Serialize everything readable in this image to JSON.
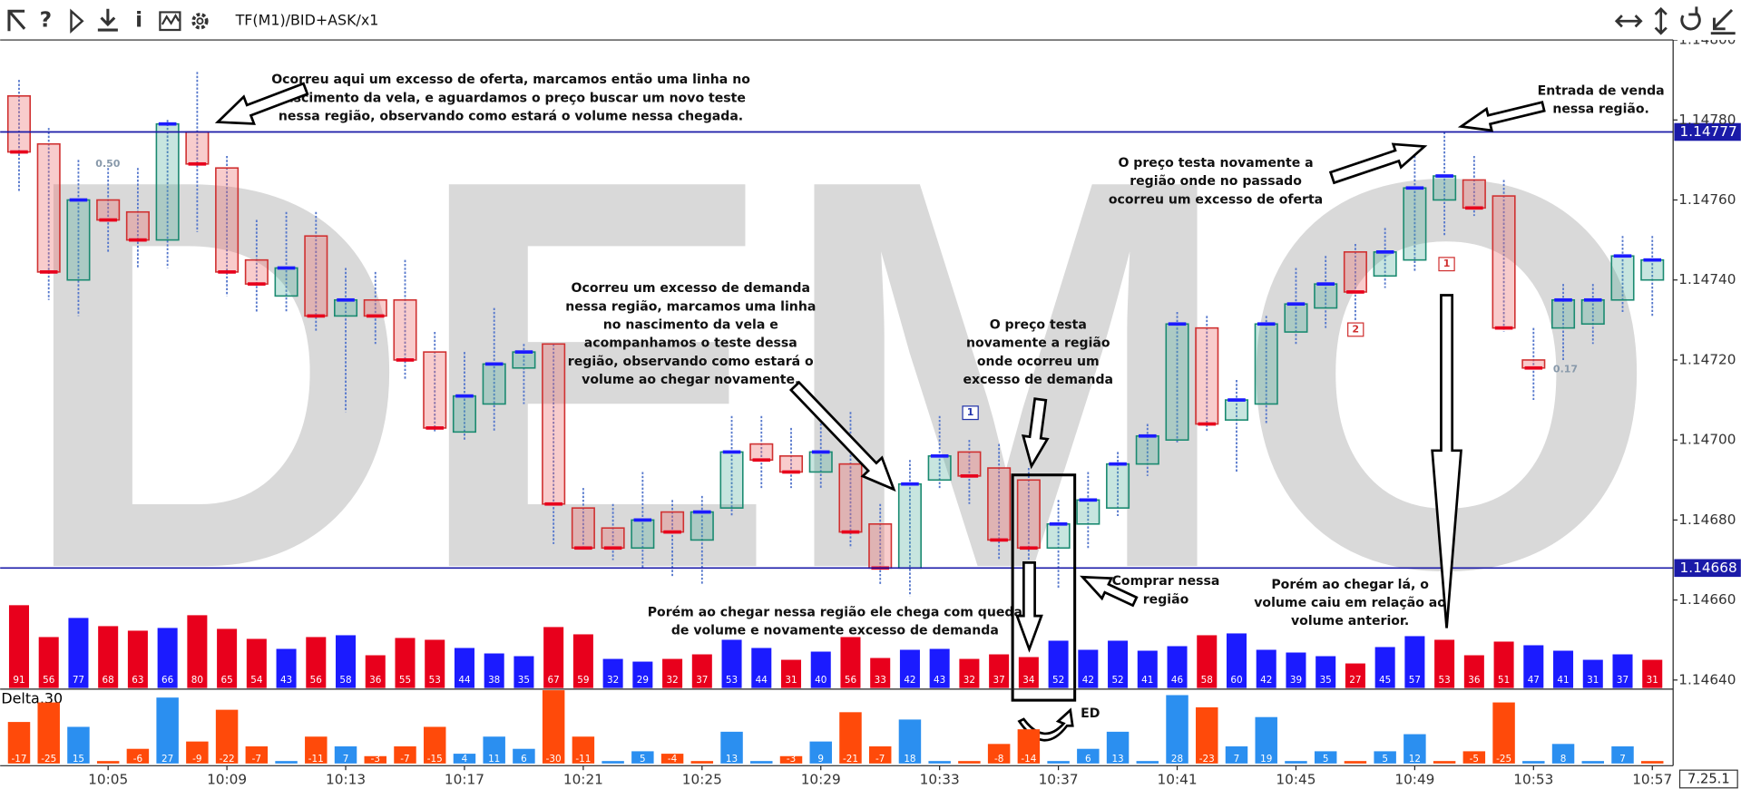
{
  "chart_data": {
    "type": "candlestick",
    "toolbar": {
      "help": "?",
      "info": "i",
      "label": "TF(M1)/BID+ASK/x1"
    },
    "watermark": "DEMO",
    "version": "7.25.1",
    "delta_title": "Delta,30",
    "categories": [
      null,
      null,
      null,
      "10:05",
      null,
      null,
      null,
      "10:09",
      null,
      null,
      null,
      "10:13",
      null,
      null,
      null,
      "10:17",
      null,
      null,
      null,
      "10:21",
      null,
      null,
      null,
      "10:25",
      null,
      null,
      null,
      "10:29",
      null,
      null,
      null,
      "10:33",
      null,
      null,
      null,
      "10:37",
      null,
      null,
      null,
      "10:41",
      null,
      null,
      null,
      "10:45",
      null,
      null,
      null,
      "10:49",
      null,
      null,
      null,
      "10:53",
      null,
      null,
      null,
      "10:57"
    ],
    "open": [
      1.14786,
      1.14774,
      1.1474,
      1.1476,
      1.14757,
      1.1475,
      1.14777,
      1.14768,
      1.14745,
      1.14736,
      1.14751,
      1.14731,
      1.14735,
      1.14735,
      1.14722,
      1.14702,
      1.14709,
      1.14718,
      1.14724,
      1.14683,
      1.14678,
      1.14673,
      1.14682,
      1.14675,
      1.14683,
      1.14699,
      1.14696,
      1.14692,
      1.14694,
      1.14679,
      1.14668,
      1.1469,
      1.14697,
      1.14693,
      1.1469,
      1.14673,
      1.14679,
      1.14683,
      1.14694,
      1.147,
      1.14728,
      1.14705,
      1.14709,
      1.14727,
      1.14733,
      1.14747,
      1.14741,
      1.14745,
      1.1476,
      1.14765,
      1.14761,
      1.1472,
      1.14728,
      1.14729,
      1.14735,
      1.1474
    ],
    "high": [
      1.1479,
      1.14778,
      1.1477,
      1.14768,
      1.14768,
      1.1478,
      1.14792,
      1.14771,
      1.14755,
      1.14757,
      1.14757,
      1.14743,
      1.14742,
      1.14745,
      1.14727,
      1.14722,
      1.14733,
      1.14724,
      1.14724,
      1.14688,
      1.14684,
      1.14692,
      1.14685,
      1.14686,
      1.14706,
      1.14706,
      1.14703,
      1.14709,
      1.14707,
      1.14684,
      1.14695,
      1.14706,
      1.147,
      1.14699,
      1.14693,
      1.14685,
      1.14692,
      1.14697,
      1.14704,
      1.14732,
      1.14731,
      1.14715,
      1.14731,
      1.14743,
      1.14746,
      1.14749,
      1.14753,
      1.14771,
      1.14777,
      1.14771,
      1.14765,
      1.14728,
      1.14739,
      1.14739,
      1.14751,
      1.14751
    ],
    "low": [
      1.14762,
      1.14735,
      1.14731,
      1.14747,
      1.14743,
      1.14743,
      1.14752,
      1.14736,
      1.14732,
      1.14732,
      1.14727,
      1.14707,
      1.14724,
      1.14715,
      1.14702,
      1.147,
      1.14702,
      1.14709,
      1.14674,
      1.14673,
      1.1467,
      1.14668,
      1.14666,
      1.14664,
      1.14681,
      1.14688,
      1.14688,
      1.14688,
      1.14673,
      1.14664,
      1.14661,
      1.14688,
      1.14684,
      1.1467,
      1.1467,
      1.14663,
      1.14673,
      1.14681,
      1.14691,
      1.14699,
      1.14702,
      1.14692,
      1.14704,
      1.14724,
      1.14728,
      1.1473,
      1.14738,
      1.14742,
      1.14751,
      1.14756,
      1.14727,
      1.1471,
      1.1472,
      1.14724,
      1.14732,
      1.14731
    ],
    "close": [
      1.14772,
      1.14742,
      1.1476,
      1.14755,
      1.1475,
      1.14779,
      1.14769,
      1.14742,
      1.14739,
      1.14743,
      1.14731,
      1.14735,
      1.14731,
      1.1472,
      1.14703,
      1.14711,
      1.14719,
      1.14722,
      1.14684,
      1.14673,
      1.14673,
      1.1468,
      1.14677,
      1.14682,
      1.14697,
      1.14695,
      1.14692,
      1.14697,
      1.14677,
      1.14668,
      1.14689,
      1.14696,
      1.14691,
      1.14675,
      1.14673,
      1.14679,
      1.14685,
      1.14694,
      1.14701,
      1.14729,
      1.14704,
      1.1471,
      1.14729,
      1.14734,
      1.14739,
      1.14737,
      1.14747,
      1.14763,
      1.14766,
      1.14758,
      1.14728,
      1.14718,
      1.14735,
      1.14735,
      1.14746,
      1.14745
    ],
    "up_color": "#1a8a70",
    "down_color": "#d03030",
    "volume": [
      91,
      56,
      77,
      68,
      63,
      66,
      80,
      65,
      54,
      43,
      56,
      58,
      36,
      55,
      53,
      44,
      38,
      35,
      67,
      59,
      32,
      29,
      32,
      37,
      53,
      44,
      31,
      40,
      56,
      33,
      42,
      43,
      32,
      37,
      34,
      52,
      42,
      52,
      41,
      46,
      58,
      60,
      42,
      39,
      35,
      27,
      45,
      57,
      53,
      36,
      51,
      47,
      41,
      31,
      37,
      31
    ],
    "volume_ylim": [
      0,
      100
    ],
    "delta": [
      -17,
      -25,
      15,
      -1,
      -6,
      27,
      -9,
      -22,
      -7,
      1,
      -11,
      7,
      -3,
      -7,
      -15,
      4,
      11,
      6,
      -30,
      -11,
      1,
      5,
      -4,
      -1,
      13,
      1,
      -3,
      9,
      -21,
      -7,
      18,
      1,
      -1,
      -8,
      -14,
      1,
      6,
      13,
      1,
      28,
      -23,
      7,
      19,
      1,
      5,
      -1,
      5,
      12,
      -1,
      -5,
      -25,
      1,
      8,
      1,
      7,
      -1
    ],
    "delta_ylim": [
      0,
      30
    ],
    "delta_colors": {
      "negative": "#ff4a0a",
      "positive": "#2b8ff0"
    },
    "ylim": [
      1.14638,
      1.148
    ],
    "yticks": [
      {
        "value": 1.1464,
        "label": "1.14640"
      },
      {
        "value": 1.1466,
        "label": "1.14660"
      },
      {
        "value": 1.1468,
        "label": "1.14680"
      },
      {
        "value": 1.147,
        "label": "1.14700"
      },
      {
        "value": 1.1472,
        "label": "1.14720"
      },
      {
        "value": 1.1474,
        "label": "1.14740"
      },
      {
        "value": 1.1476,
        "label": "1.14760"
      },
      {
        "value": 1.1478,
        "label": "1.14780"
      },
      {
        "value": 1.148,
        "label": "1.14800"
      }
    ],
    "levels": [
      1.14777,
      1.14668
    ],
    "level_color": "#1a1aa8",
    "annotations": [
      [
        "Ocorreu aqui um excesso de oferta, marcamos então uma linha no",
        "nascimento da vela, e aguardamos o preço buscar um novo teste",
        "nessa região, observando como estará o volume nessa chegada."
      ],
      [
        "Entrada de venda",
        "nessa região."
      ],
      [
        "O preço testa novamente a",
        "região onde no passado",
        "ocorreu um excesso de oferta"
      ],
      [
        "Ocorreu um excesso de demanda",
        "nessa região, marcamos uma linha",
        "no nascimento da vela e",
        "acompanhamos o teste dessa",
        "região, observando como estará o",
        "volume ao chegar novamente."
      ],
      [
        "O preço testa",
        "novamente a região",
        "onde ocorreu um",
        "excesso de demanda"
      ],
      [
        "Comprar nessa",
        "região"
      ],
      [
        "Porém ao chegar lá, o",
        "volume caiu em relação ao",
        "volume anterior."
      ],
      [
        "Porém ao chegar nessa região ele chega com queda",
        "de volume e novamente excesso de demanda"
      ],
      [
        "ED"
      ]
    ],
    "markers": [
      "0.50",
      "0.17",
      "1",
      "2",
      "1"
    ]
  }
}
